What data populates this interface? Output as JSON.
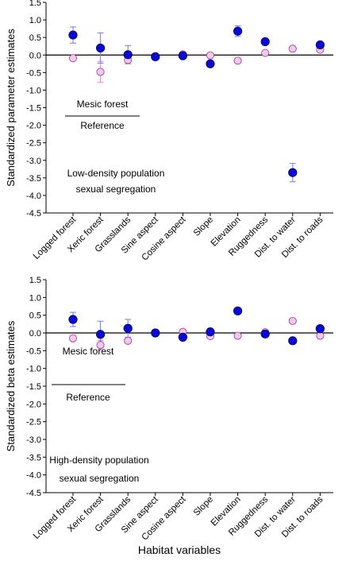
{
  "figure": {
    "shared_xlabel": "Habitat variables"
  },
  "chart_data": [
    {
      "type": "scatter",
      "ylabel": "Standardized parameter estimates",
      "xlabel": "",
      "categories": [
        "Logged forest",
        "Xeric forest",
        "Grasslands",
        "Sine aspect",
        "Cosine aspect",
        "Slope",
        "Elevation",
        "Ruggedness",
        "Dist. to water",
        "Dist. to roads"
      ],
      "ylim": [
        -4.5,
        1.5
      ],
      "yticks": [
        "1.5",
        "1.0",
        "0.5",
        "0.0",
        "-0.5",
        "-1.0",
        "-1.5",
        "-2.0",
        "-2.5",
        "-3.0",
        "-3.5",
        "-4.0",
        "-4.5"
      ],
      "zero_line": true,
      "annotations": [
        "Low-density population",
        "sexual segregation"
      ],
      "legend": {
        "top_label": "Mesic forest",
        "bottom_label": "Reference",
        "placement": "left"
      },
      "series": [
        {
          "color": "#0a0ad2",
          "edge": "#00006e",
          "errorbar_color": "#7878e6",
          "values": [
            0.57,
            0.2,
            0.01,
            -0.05,
            -0.02,
            -0.25,
            0.68,
            0.38,
            -3.35,
            0.29
          ],
          "errors": [
            0.23,
            0.43,
            0.26,
            0.06,
            0.06,
            0.08,
            0.15,
            0.08,
            0.26,
            0.06
          ]
        },
        {
          "color": "#f4c6f0",
          "edge": "#903a90",
          "errorbar_color": "#e880e0",
          "values": [
            -0.09,
            -0.48,
            -0.14,
            -0.03,
            0.02,
            -0.01,
            -0.16,
            0.06,
            0.18,
            0.15
          ],
          "errors": [
            0.0,
            0.3,
            0.07,
            0.0,
            0.0,
            0.0,
            0.0,
            0.0,
            0.0,
            0.0
          ]
        }
      ]
    },
    {
      "type": "scatter",
      "ylabel": "Standardized beta estimates",
      "xlabel": "Habitat variables",
      "categories": [
        "Logged forest",
        "Xeric forest",
        "Grasslands",
        "Sine aspect",
        "Cosine aspect",
        "Slope",
        "Elevation",
        "Ruggedness",
        "Dist. to water",
        "Dist. to roads"
      ],
      "ylim": [
        -4.5,
        1.5
      ],
      "yticks": [
        "1.5",
        "1.0",
        "0.5",
        "0.0",
        "-0.5",
        "-1.0",
        "-1.5",
        "-2.0",
        "-2.5",
        "-3.0",
        "-3.5",
        "-4.0",
        "-4.5"
      ],
      "zero_line": true,
      "annotations": [
        "High-density population",
        "sexual segregation"
      ],
      "legend": {
        "top_label": "Mesic forest",
        "bottom_label": "Reference",
        "placement": "left"
      },
      "series": [
        {
          "color": "#0a0ad2",
          "edge": "#00006e",
          "errorbar_color": "#7878e6",
          "values": [
            0.38,
            -0.04,
            0.13,
            0.0,
            -0.12,
            0.03,
            0.62,
            -0.03,
            -0.22,
            0.12
          ],
          "errors": [
            0.2,
            0.37,
            0.25,
            0.05,
            0.06,
            0.06,
            0.07,
            0.05,
            0.07,
            0.06
          ]
        },
        {
          "color": "#f4c6f0",
          "edge": "#903a90",
          "errorbar_color": "#e880e0",
          "values": [
            -0.15,
            -0.34,
            -0.22,
            -0.01,
            0.03,
            -0.09,
            -0.08,
            0.02,
            0.34,
            -0.08
          ],
          "errors": [
            0.0,
            0.13,
            0.0,
            0.0,
            0.0,
            0.0,
            0.0,
            0.0,
            0.0,
            0.0
          ]
        }
      ]
    }
  ]
}
